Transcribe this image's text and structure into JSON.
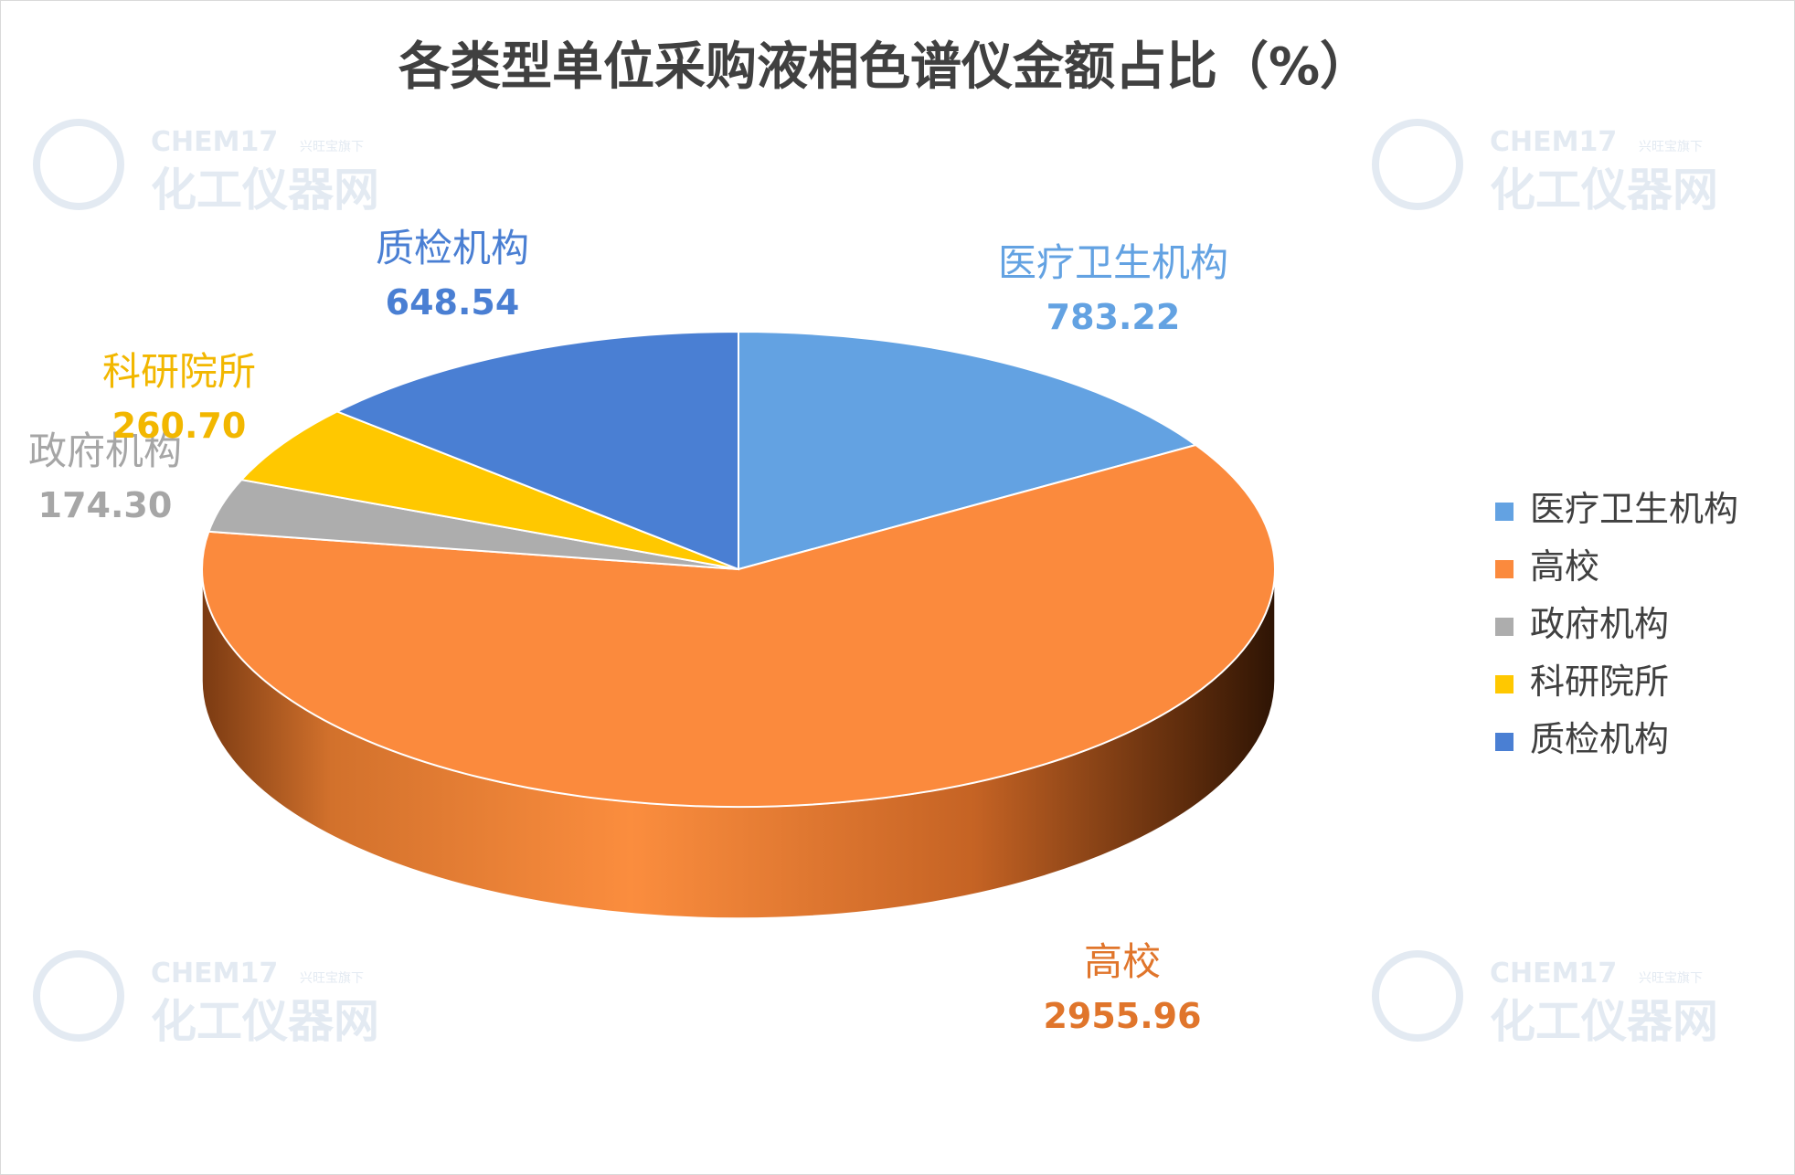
{
  "chart_data": {
    "type": "pie",
    "title": "各类型单位采购液相色谱仪金额占比（%）",
    "categories": [
      "医疗卫生机构",
      "高校",
      "政府机构",
      "科研院所",
      "质检机构"
    ],
    "values": [
      783.22,
      2955.96,
      174.3,
      260.7,
      648.54
    ],
    "value_labels": [
      "783.22",
      "2955.96",
      "174.30",
      "260.70",
      "648.54"
    ],
    "colors": [
      "#63A2E2",
      "#FB8A3D",
      "#ADADAD",
      "#FFC800",
      "#4A7FD3"
    ],
    "legend": "right",
    "style": "3d"
  },
  "watermark": {
    "brand": "CHEM17",
    "slogan": "兴旺宝旗下",
    "site": "化工仪器网"
  }
}
